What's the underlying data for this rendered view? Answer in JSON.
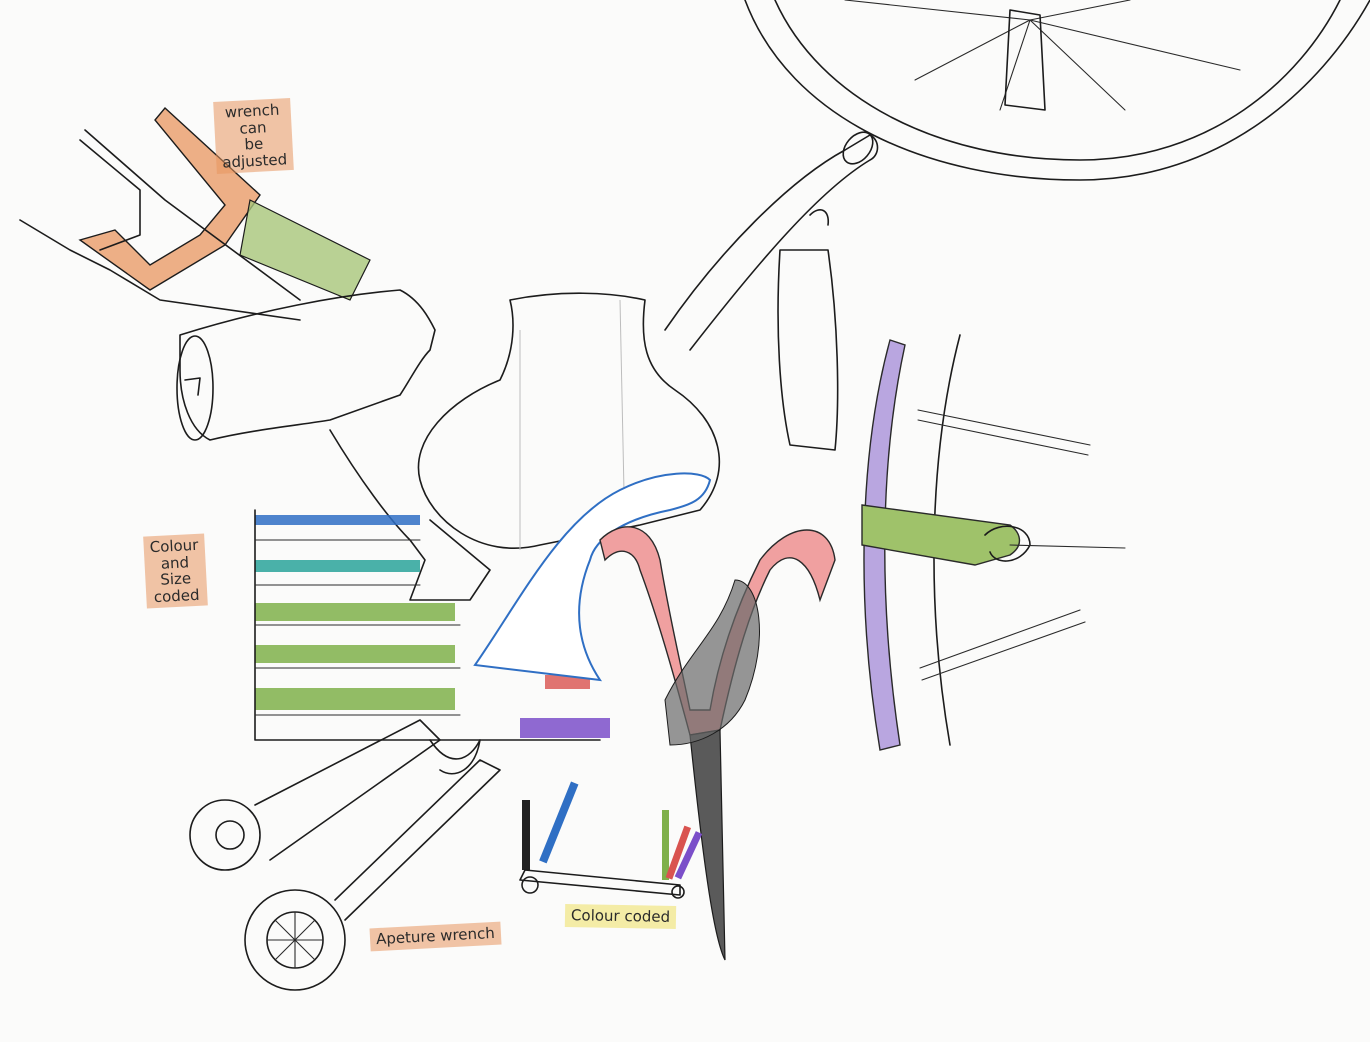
{
  "annotations": {
    "wrench_note": "wrench\ncan\nbe\nadjusted",
    "colour_size_note": "Colour\nand\nSize\ncoded",
    "aperture_note": "Apeture wrench",
    "colour_coded_note": "Colour coded"
  },
  "colors": {
    "orange_highlight": "#e8965f",
    "yellow_highlight": "#f0e26e",
    "blue": "#2f6fc4",
    "teal": "#2aa39a",
    "green": "#7fb04a",
    "purple": "#7b4fc9",
    "red": "#d9534f",
    "pink": "#f0a0a0",
    "grey": "#5a5a5a"
  }
}
